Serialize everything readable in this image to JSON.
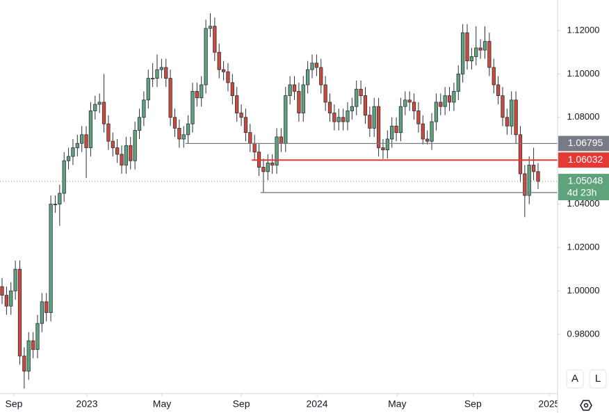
{
  "chart_data": {
    "type": "candlestick",
    "open": [
      1.002,
      0.998,
      0.993,
      1.0,
      1.01,
      0.97,
      0.963,
      0.977,
      0.973,
      0.985,
      0.995,
      0.99,
      1.04,
      1.04,
      1.045,
      1.06,
      1.062,
      1.066,
      1.068,
      1.072,
      1.066,
      1.083,
      1.086,
      1.087,
      1.077,
      1.069,
      1.066,
      1.063,
      1.058,
      1.067,
      1.06,
      1.074,
      1.08,
      1.088,
      1.098,
      1.098,
      1.102,
      1.103,
      1.098,
      1.08,
      1.075,
      1.07,
      1.072,
      1.077,
      1.092,
      1.089,
      1.095,
      1.121,
      1.122,
      1.11,
      1.102,
      1.101,
      1.096,
      1.09,
      1.082,
      1.08,
      1.073,
      1.068,
      1.064,
      1.057,
      1.055,
      1.059,
      1.058,
      1.071,
      1.068,
      1.09,
      1.095,
      1.092,
      1.082,
      1.095,
      1.102,
      1.105,
      1.103,
      1.095,
      1.087,
      1.082,
      1.078,
      1.08,
      1.078,
      1.083,
      1.085,
      1.093,
      1.09,
      1.081,
      1.075,
      1.085,
      1.066,
      1.065,
      1.07,
      1.076,
      1.073,
      1.085,
      1.088,
      1.087,
      1.083,
      1.077,
      1.07,
      1.069,
      1.078,
      1.087,
      1.085,
      1.09,
      1.087,
      1.092,
      1.1,
      1.119,
      1.106,
      1.108,
      1.112,
      1.111,
      1.115,
      1.103,
      1.095,
      1.09,
      1.08,
      1.076,
      1.088,
      1.072,
      1.054,
      1.044,
      1.058,
      1.055
    ],
    "high": [
      1.006,
      1.002,
      1.004,
      1.014,
      1.014,
      0.974,
      0.981,
      0.981,
      0.989,
      0.999,
      0.999,
      1.044,
      1.044,
      1.049,
      1.064,
      1.066,
      1.07,
      1.072,
      1.076,
      1.076,
      1.087,
      1.09,
      1.091,
      1.1,
      1.081,
      1.073,
      1.07,
      1.067,
      1.071,
      1.071,
      1.078,
      1.084,
      1.092,
      1.102,
      1.105,
      1.109,
      1.107,
      1.107,
      1.102,
      1.084,
      1.079,
      1.076,
      1.081,
      1.096,
      1.096,
      1.099,
      1.125,
      1.128,
      1.126,
      1.114,
      1.106,
      1.105,
      1.1,
      1.094,
      1.086,
      1.084,
      1.077,
      1.072,
      1.068,
      1.061,
      1.063,
      1.063,
      1.075,
      1.075,
      1.094,
      1.099,
      1.099,
      1.096,
      1.099,
      1.106,
      1.109,
      1.109,
      1.107,
      1.099,
      1.091,
      1.086,
      1.084,
      1.084,
      1.087,
      1.089,
      1.097,
      1.097,
      1.094,
      1.085,
      1.089,
      1.089,
      1.07,
      1.074,
      1.08,
      1.08,
      1.089,
      1.092,
      1.092,
      1.091,
      1.087,
      1.081,
      1.074,
      1.082,
      1.091,
      1.091,
      1.094,
      1.094,
      1.096,
      1.104,
      1.123,
      1.123,
      1.112,
      1.122,
      1.116,
      1.122,
      1.119,
      1.107,
      1.099,
      1.094,
      1.084,
      1.092,
      1.092,
      1.076,
      1.058,
      1.062,
      1.066,
      1.059
    ],
    "low": [
      0.994,
      0.989,
      0.989,
      0.996,
      0.966,
      0.955,
      0.959,
      0.969,
      0.969,
      0.981,
      0.986,
      0.986,
      1.036,
      1.03,
      1.041,
      1.056,
      1.058,
      1.062,
      1.064,
      1.052,
      1.062,
      1.079,
      1.082,
      1.073,
      1.065,
      1.062,
      1.059,
      1.054,
      1.054,
      1.056,
      1.056,
      1.07,
      1.076,
      1.084,
      1.094,
      1.094,
      1.098,
      1.094,
      1.076,
      1.071,
      1.066,
      1.066,
      1.068,
      1.073,
      1.085,
      1.085,
      1.091,
      1.117,
      1.106,
      1.098,
      1.097,
      1.092,
      1.086,
      1.078,
      1.076,
      1.069,
      1.064,
      1.06,
      1.053,
      1.0454,
      1.051,
      1.054,
      1.054,
      1.064,
      1.064,
      1.086,
      1.088,
      1.078,
      1.078,
      1.091,
      1.098,
      1.099,
      1.091,
      1.083,
      1.078,
      1.074,
      1.074,
      1.074,
      1.074,
      1.079,
      1.081,
      1.086,
      1.077,
      1.071,
      1.071,
      1.062,
      1.0608,
      1.061,
      1.066,
      1.069,
      1.069,
      1.081,
      1.083,
      1.079,
      1.073,
      1.0675,
      1.0675,
      1.065,
      1.074,
      1.081,
      1.081,
      1.083,
      1.083,
      1.088,
      1.096,
      1.102,
      1.102,
      1.104,
      1.107,
      1.107,
      1.099,
      1.091,
      1.086,
      1.076,
      1.072,
      1.072,
      1.068,
      1.05,
      1.034,
      1.04,
      1.051,
      1.047
    ],
    "close": [
      0.998,
      0.993,
      1.0,
      1.01,
      0.97,
      0.963,
      0.977,
      0.973,
      0.985,
      0.995,
      0.99,
      1.04,
      1.04,
      1.045,
      1.06,
      1.062,
      1.066,
      1.068,
      1.072,
      1.066,
      1.083,
      1.086,
      1.087,
      1.077,
      1.069,
      1.066,
      1.063,
      1.058,
      1.067,
      1.06,
      1.074,
      1.08,
      1.088,
      1.098,
      1.098,
      1.102,
      1.103,
      1.098,
      1.08,
      1.075,
      1.07,
      1.072,
      1.077,
      1.092,
      1.089,
      1.095,
      1.121,
      1.122,
      1.11,
      1.102,
      1.101,
      1.096,
      1.09,
      1.082,
      1.08,
      1.073,
      1.068,
      1.064,
      1.057,
      1.055,
      1.059,
      1.058,
      1.071,
      1.068,
      1.09,
      1.095,
      1.092,
      1.082,
      1.095,
      1.102,
      1.105,
      1.103,
      1.095,
      1.087,
      1.082,
      1.078,
      1.08,
      1.078,
      1.083,
      1.085,
      1.093,
      1.09,
      1.081,
      1.075,
      1.085,
      1.066,
      1.065,
      1.07,
      1.076,
      1.073,
      1.085,
      1.088,
      1.087,
      1.083,
      1.077,
      1.07,
      1.069,
      1.078,
      1.087,
      1.085,
      1.09,
      1.087,
      1.092,
      1.1,
      1.119,
      1.106,
      1.108,
      1.112,
      1.111,
      1.115,
      1.103,
      1.095,
      1.09,
      1.08,
      1.076,
      1.088,
      1.072,
      1.054,
      1.044,
      1.058,
      1.055,
      1.05048
    ],
    "up_color": "#5fa37c",
    "down_color": "#cc4a3c",
    "xlim": [
      -0.47,
      125.4
    ],
    "xticks": [
      {
        "value": 2.67,
        "label": "Sep"
      },
      {
        "value": 19.15,
        "label": "2023"
      },
      {
        "value": 36.1,
        "label": "May"
      },
      {
        "value": 54.0,
        "label": "Sep"
      },
      {
        "value": 71.1,
        "label": "2024"
      },
      {
        "value": 89.2,
        "label": "May"
      },
      {
        "value": 106.3,
        "label": "Sep"
      },
      {
        "value": 123.5,
        "label": "2025"
      }
    ],
    "ylim": [
      0.9527,
      1.1341
    ],
    "yticks": [
      {
        "value": 1.12,
        "label": "1.12000"
      },
      {
        "value": 1.1,
        "label": "1.10000"
      },
      {
        "value": 1.08,
        "label": "1.08000"
      },
      {
        "value": 1.06,
        "label": "1.06000"
      },
      {
        "value": 1.04,
        "label": "1.04000"
      },
      {
        "value": 1.02,
        "label": "1.02000"
      },
      {
        "value": 1.0,
        "label": "1.00000"
      },
      {
        "value": 0.98,
        "label": "0.98000"
      }
    ],
    "grid": false,
    "levels": [
      {
        "value": 1.06795,
        "color": "#787b86"
      },
      {
        "value": 1.06032,
        "color": "#e53935"
      },
      {
        "value": 1.04535,
        "color": "#787b86"
      }
    ],
    "last_price": 1.05048,
    "countdown": "4d 23h"
  },
  "buttons": [
    "A",
    "L"
  ]
}
